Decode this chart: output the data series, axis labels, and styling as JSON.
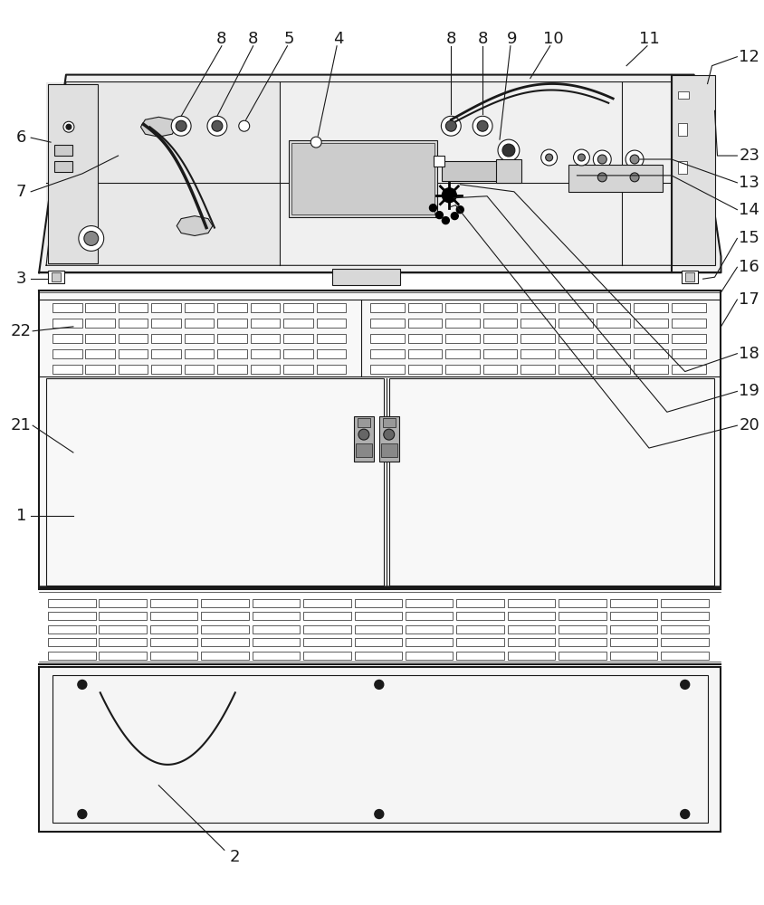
{
  "bg_color": "#ffffff",
  "lc": "#1a1a1a",
  "fig_width": 8.44,
  "fig_height": 10.0,
  "dpi": 100
}
